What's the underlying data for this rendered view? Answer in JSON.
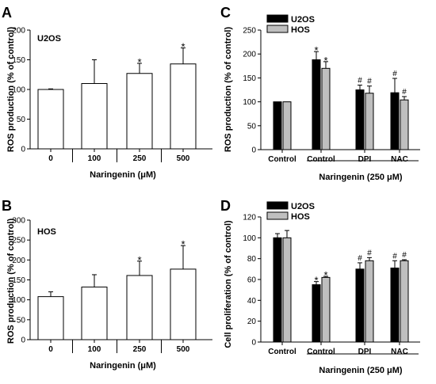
{
  "colors": {
    "axis": "#000000",
    "bar_open": "#ffffff",
    "u2os": "#000000",
    "hos": "#bfbfbf"
  },
  "chart_data": [
    {
      "panel": "A",
      "type": "bar",
      "inset": "U2OS",
      "ylabel": "ROS production (% of control)",
      "xlabel": "Naringenin (μM)",
      "ylim": [
        0,
        200
      ],
      "yticks": [
        0,
        50,
        100,
        150,
        200
      ],
      "categories": [
        "0",
        "100",
        "250",
        "500"
      ],
      "series": [
        {
          "values": [
            100,
            110,
            127,
            143
          ],
          "errors": [
            1,
            40,
            17,
            27
          ],
          "marks": [
            "",
            "",
            "*",
            "*"
          ]
        }
      ]
    },
    {
      "panel": "B",
      "type": "bar",
      "inset": "HOS",
      "ylabel": "ROS production (% of control)",
      "xlabel": "Naringenin (μM)",
      "ylim": [
        0,
        300
      ],
      "yticks": [
        0,
        50,
        100,
        150,
        200,
        250,
        300
      ],
      "categories": [
        "0",
        "100",
        "250",
        "500"
      ],
      "series": [
        {
          "values": [
            108,
            132,
            161,
            177
          ],
          "errors": [
            12,
            31,
            36,
            59
          ],
          "marks": [
            "",
            "",
            "*",
            "*"
          ]
        }
      ]
    },
    {
      "panel": "C",
      "type": "bar",
      "ylabel": "ROS production (% of control)",
      "xlabel": "Naringenin (250 μM)",
      "ylim": [
        0,
        250
      ],
      "yticks": [
        0,
        50,
        100,
        150,
        200,
        250
      ],
      "categories": [
        "Control",
        "Control",
        "DPI",
        "NAC"
      ],
      "legend": {
        "position": "top-left"
      },
      "series": [
        {
          "name": "U2OS",
          "values": [
            100,
            188,
            125,
            119
          ],
          "errors": [
            0,
            17,
            10,
            30
          ],
          "marks": [
            "",
            "*",
            "#",
            "#"
          ]
        },
        {
          "name": "HOS",
          "values": [
            100,
            170,
            118,
            104
          ],
          "errors": [
            0,
            14,
            15,
            7
          ],
          "marks": [
            "",
            "*",
            "#",
            "#"
          ]
        }
      ]
    },
    {
      "panel": "D",
      "type": "bar",
      "ylabel": "Cell proliferation (% of control)",
      "xlabel": "Naringenin (250 μM)",
      "ylim": [
        0,
        120
      ],
      "yticks": [
        0,
        20,
        40,
        60,
        80,
        100,
        120
      ],
      "categories": [
        "Control",
        "Control",
        "DPI",
        "NAC"
      ],
      "legend": {
        "position": "top-left"
      },
      "series": [
        {
          "name": "U2OS",
          "values": [
            100,
            55,
            70,
            71
          ],
          "errors": [
            4,
            3,
            6,
            7
          ],
          "marks": [
            "",
            "*",
            "#",
            "#"
          ]
        },
        {
          "name": "HOS",
          "values": [
            100,
            62,
            78,
            78
          ],
          "errors": [
            7,
            1,
            3,
            1
          ],
          "marks": [
            "",
            "*",
            "#",
            "#"
          ]
        }
      ]
    }
  ]
}
